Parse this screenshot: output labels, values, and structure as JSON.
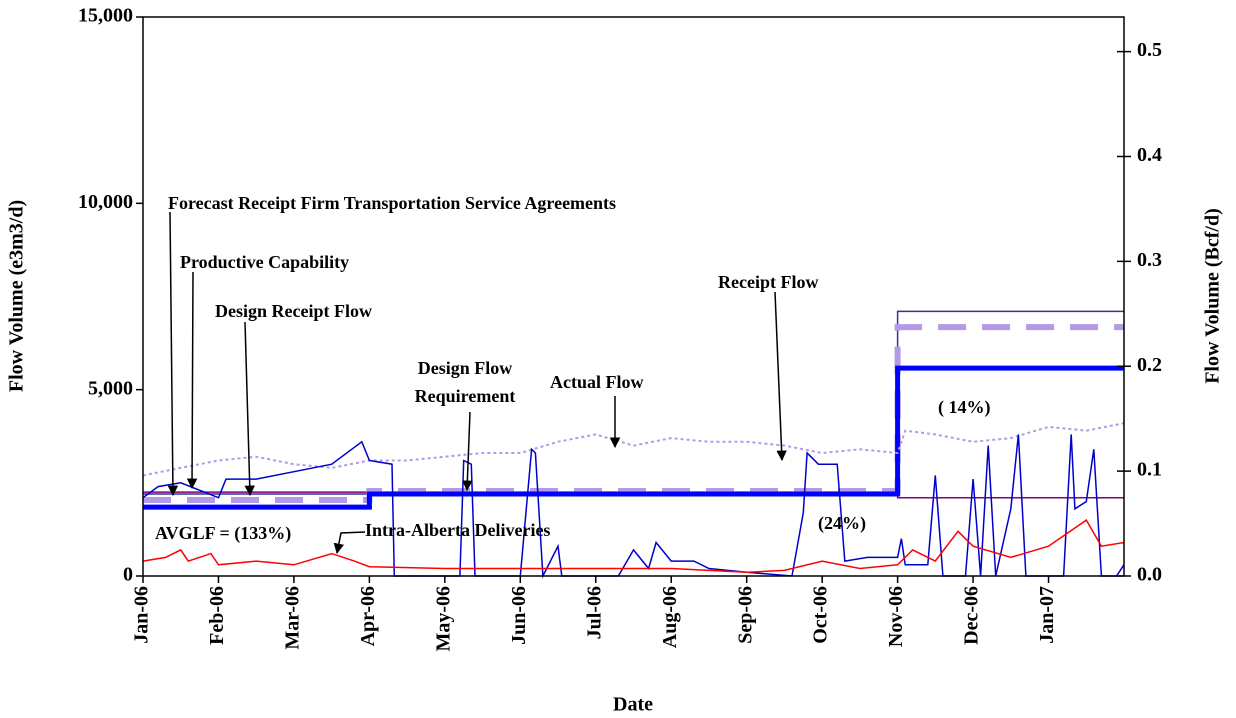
{
  "chart_data": {
    "type": "line",
    "xlabel": "Date",
    "ylabel": "Flow Volume (e3m3/d)",
    "y2label": "Flow Volume  (Bcf/d)",
    "xlim": [
      0,
      13
    ],
    "xticks": [
      {
        "value": 0,
        "label": "Jan-06"
      },
      {
        "value": 1,
        "label": "Feb-06"
      },
      {
        "value": 2,
        "label": "Mar-06"
      },
      {
        "value": 3,
        "label": "Apr-06"
      },
      {
        "value": 4,
        "label": "May-06"
      },
      {
        "value": 5,
        "label": "Jun-06"
      },
      {
        "value": 6,
        "label": "Jul-06"
      },
      {
        "value": 7,
        "label": "Aug-06"
      },
      {
        "value": 8,
        "label": "Sep-06"
      },
      {
        "value": 9,
        "label": "Oct-06"
      },
      {
        "value": 10,
        "label": "Nov-06"
      },
      {
        "value": 11,
        "label": "Dec-06"
      },
      {
        "value": 12,
        "label": "Jan-07"
      }
    ],
    "ylim": [
      0,
      15000
    ],
    "yticks": [
      0,
      {
        "value": 5000,
        "label": "5,000"
      },
      {
        "value": 10000,
        "label": "10,000"
      },
      {
        "value": 15000,
        "label": "15,000"
      }
    ],
    "y2lim": [
      0,
      0.533
    ],
    "y2ticks": [
      {
        "value": 0,
        "label": "0.0"
      },
      0.1,
      0.2,
      0.3,
      0.4,
      0.5
    ],
    "series": [
      {
        "name": "Forecast Receipt Firm Transportation Service Agreements",
        "color": "#333399",
        "style": "solid",
        "linewidth": 1.5,
        "x": [
          0,
          10,
          10,
          13
        ],
        "values": [
          2200,
          2200,
          7100,
          7100
        ]
      },
      {
        "name": "Productive Capability",
        "color": "#800080",
        "style": "solid",
        "linewidth": 1.5,
        "x": [
          0,
          10,
          10,
          13
        ],
        "values": [
          2250,
          2250,
          2100,
          2100
        ]
      },
      {
        "name": "Design Receipt Flow",
        "color": "#b399e6",
        "style": "dashed",
        "linewidth": 6,
        "x": [
          0,
          3,
          3,
          10,
          10,
          13
        ],
        "values": [
          2040,
          2040,
          2280,
          2280,
          6680,
          6680
        ]
      },
      {
        "name": "Design Flow Requirement",
        "color": "#0000ff",
        "style": "solid",
        "linewidth": 5,
        "x": [
          0,
          3,
          3,
          10,
          10,
          13
        ],
        "values": [
          1850,
          1850,
          2200,
          2200,
          5580,
          5580
        ]
      },
      {
        "name": "Actual Flow",
        "color": "#b399e6",
        "style": "dotted",
        "linewidth": 2,
        "x": [
          0,
          0.5,
          1,
          1.5,
          2,
          2.5,
          3,
          3.5,
          4,
          4.5,
          5,
          5.5,
          6,
          6.5,
          7,
          7.5,
          8,
          8.5,
          9,
          9.5,
          10,
          10.1,
          10.5,
          11,
          11.5,
          12,
          12.5,
          13
        ],
        "values": [
          2700,
          2900,
          3100,
          3200,
          3000,
          2900,
          3100,
          3100,
          3200,
          3300,
          3300,
          3600,
          3800,
          3500,
          3700,
          3600,
          3600,
          3500,
          3300,
          3400,
          3300,
          3900,
          3800,
          3600,
          3700,
          4000,
          3900,
          4100
        ]
      },
      {
        "name": "Receipt Flow",
        "color": "#0000cc",
        "style": "solid",
        "linewidth": 1.5,
        "x": [
          0,
          0.2,
          0.5,
          1,
          1.1,
          1.5,
          2,
          2.5,
          2.9,
          3,
          3.3,
          3.33,
          4.2,
          4.25,
          4.35,
          4.4,
          5,
          5.15,
          5.2,
          5.3,
          5.5,
          5.55,
          6.3,
          6.5,
          6.7,
          6.8,
          7,
          7.3,
          7.5,
          8,
          8.6,
          8.75,
          8.8,
          8.95,
          9.2,
          9.3,
          9.6,
          10,
          10.05,
          10.1,
          10.4,
          10.5,
          10.6,
          10.9,
          11,
          11.1,
          11.2,
          11.3,
          11.5,
          11.6,
          11.7,
          12.2,
          12.3,
          12.35,
          12.5,
          12.6,
          12.7,
          12.9,
          13
        ],
        "values": [
          2100,
          2400,
          2500,
          2100,
          2600,
          2600,
          2800,
          3000,
          3600,
          3100,
          3000,
          0,
          0,
          3100,
          3000,
          0,
          0,
          3400,
          3300,
          0,
          800,
          0,
          0,
          700,
          200,
          900,
          400,
          400,
          200,
          100,
          0,
          1700,
          3300,
          3000,
          3000,
          400,
          500,
          500,
          1000,
          300,
          300,
          2700,
          0,
          0,
          2600,
          0,
          3500,
          0,
          1800,
          3800,
          0,
          0,
          3800,
          1800,
          2000,
          3400,
          0,
          0,
          300
        ]
      },
      {
        "name": "Intra-Alberta Deliveries",
        "color": "#ff0000",
        "style": "solid",
        "linewidth": 1.5,
        "x": [
          0,
          0.3,
          0.5,
          0.6,
          0.9,
          1,
          1.5,
          2,
          2.5,
          2.8,
          3,
          4,
          5,
          6,
          7,
          8,
          8.5,
          9,
          9.5,
          10,
          10.2,
          10.5,
          10.8,
          11,
          11.5,
          12,
          12.5,
          12.7,
          13
        ],
        "values": [
          400,
          500,
          700,
          400,
          600,
          300,
          400,
          300,
          600,
          400,
          250,
          200,
          200,
          200,
          200,
          100,
          150,
          400,
          200,
          300,
          700,
          400,
          1200,
          800,
          500,
          800,
          1500,
          800,
          900
        ]
      }
    ],
    "annotations": [
      "AVGLF = (133%)",
      "(24%)",
      "( 14%)"
    ]
  }
}
